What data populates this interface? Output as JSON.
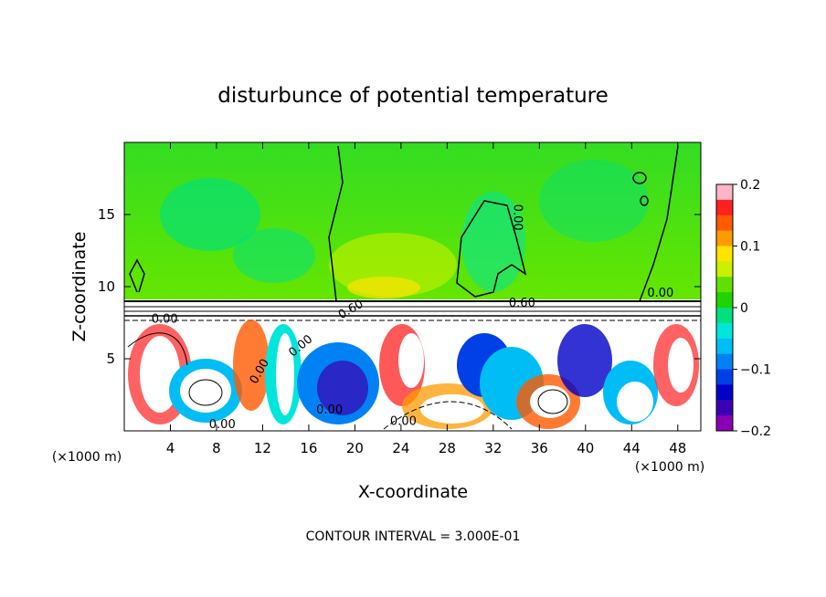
{
  "chart_data": {
    "type": "heatmap",
    "title": "disturbunce of potential temperature",
    "xlabel": "X-coordinate",
    "ylabel": "Z-coordinate",
    "x_unit": "(×1000 m)",
    "y_unit": "(×1000 m)",
    "xlim": [
      0,
      50
    ],
    "ylim": [
      0,
      20
    ],
    "x_ticks": [
      4,
      8,
      12,
      16,
      20,
      24,
      28,
      32,
      36,
      40,
      44,
      48
    ],
    "y_ticks": [
      5,
      10,
      15
    ],
    "colorbar": {
      "range": [
        -0.2,
        0.2
      ],
      "ticks": [
        0.2,
        0.1,
        0,
        -0.1,
        -0.2
      ],
      "tick_labels": [
        "0.2",
        "0.1",
        "0",
        "−0.1",
        "−0.2"
      ],
      "colors": [
        "#ffb4c8",
        "#ff2020",
        "#ff5a00",
        "#ff9b00",
        "#ffe400",
        "#c8f000",
        "#5fe100",
        "#1fd400",
        "#00e17d",
        "#00e6dc",
        "#00bef5",
        "#0082f5",
        "#0040e6",
        "#0000c8",
        "#3c00b4",
        "#8c00b4"
      ]
    },
    "contour_labels": [
      "0.00",
      "0.00",
      "0.00",
      "0.00",
      "0.00",
      "0.60",
      "0.60",
      "0.00",
      "0.00",
      "0.00"
    ],
    "footnote": "CONTOUR INTERVAL = 3.000E-01"
  }
}
